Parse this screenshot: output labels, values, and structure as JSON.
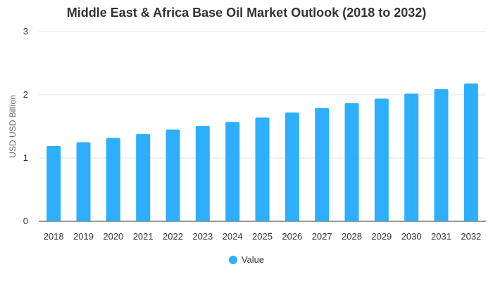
{
  "chart_data": {
    "type": "bar",
    "title": "Middle East & Africa Base Oil Market Outlook (2018 to 2032)",
    "xlabel": "",
    "ylabel": "USD USD Billion",
    "categories": [
      "2018",
      "2019",
      "2020",
      "2021",
      "2022",
      "2023",
      "2024",
      "2025",
      "2026",
      "2027",
      "2028",
      "2029",
      "2030",
      "2031",
      "2032"
    ],
    "series": [
      {
        "name": "Value",
        "values": [
          1.19,
          1.25,
          1.32,
          1.38,
          1.45,
          1.51,
          1.57,
          1.64,
          1.72,
          1.79,
          1.87,
          1.94,
          2.02,
          2.09,
          2.18
        ]
      }
    ],
    "ylim": [
      0,
      3
    ],
    "yticks": [
      "0",
      "1",
      "2",
      "3"
    ],
    "grid": true,
    "legend_position": "bottom",
    "colors": {
      "bar": "#2eaefe",
      "grid": "#e6e6e6",
      "axis": "#333333"
    }
  }
}
